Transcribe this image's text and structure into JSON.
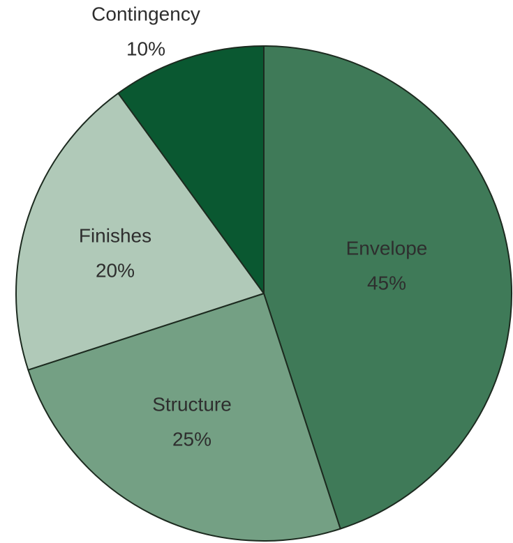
{
  "chart_data": {
    "type": "pie",
    "title": "",
    "legend": "none",
    "start_angle": "12 o'clock",
    "direction": "clockwise",
    "slices": [
      {
        "label": "Envelope",
        "value": 45,
        "value_label": "45%",
        "color": "#3f7a58"
      },
      {
        "label": "Structure",
        "value": 25,
        "value_label": "25%",
        "color": "#74a084"
      },
      {
        "label": "Finishes",
        "value": 20,
        "value_label": "20%",
        "color": "#b0c9b8"
      },
      {
        "label": "Contingency",
        "value": 10,
        "value_label": "10%",
        "color": "#0a5831"
      }
    ]
  }
}
